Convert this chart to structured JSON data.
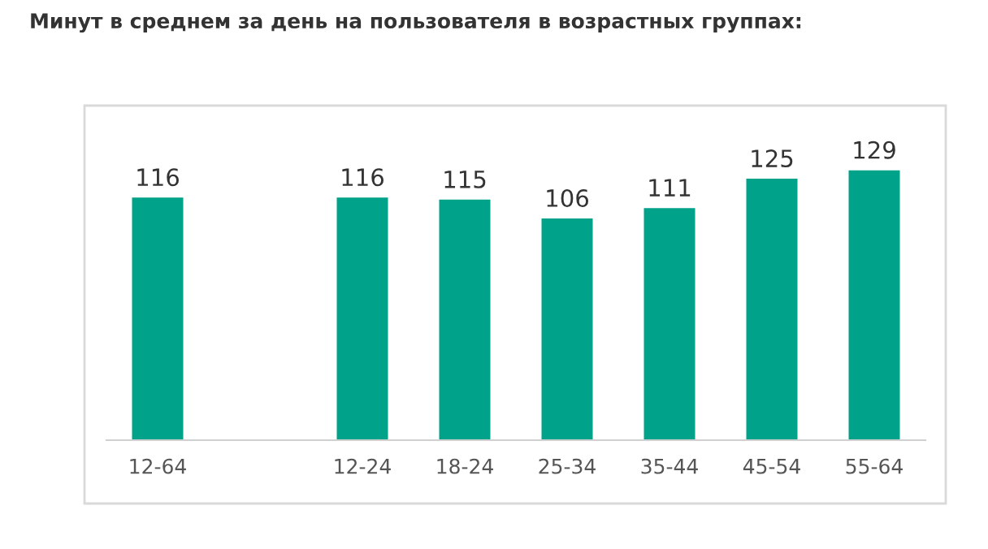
{
  "chart_data": {
    "type": "bar",
    "title": "Минут в среднем за день на пользователя в возрастных группах:",
    "categories": [
      "12-64",
      null,
      "12-24",
      "18-24",
      "25-34",
      "35-44",
      "45-54",
      "55-64"
    ],
    "values": [
      116,
      null,
      116,
      115,
      106,
      111,
      125,
      129
    ],
    "color": "#00a389",
    "data_labels": true,
    "tick_labels": "x",
    "grid": false
  }
}
